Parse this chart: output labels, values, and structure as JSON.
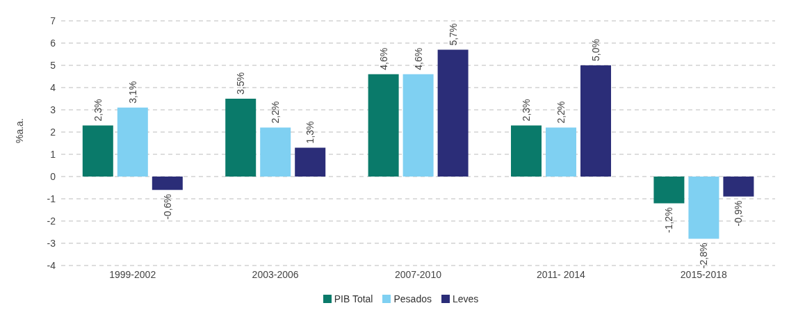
{
  "chart_data": {
    "type": "bar",
    "ylabel": "%a.a.",
    "categories": [
      "1999-2002",
      "2003-2006",
      "2007-2010",
      "2011- 2014",
      "2015-2018"
    ],
    "series": [
      {
        "name": "PIB Total",
        "color": "#0a7a6a",
        "values": [
          2.3,
          3.5,
          4.6,
          2.3,
          -1.2
        ],
        "value_labels": [
          "2,3%",
          "3,5%",
          "4,6%",
          "2,3%",
          "-1,2%"
        ]
      },
      {
        "name": "Pesados",
        "color": "#7fd0f2",
        "values": [
          3.1,
          2.2,
          4.6,
          2.2,
          -2.8
        ],
        "value_labels": [
          "3,1%",
          "2,2%",
          "4,6%",
          "2,2%",
          "-2,8%"
        ]
      },
      {
        "name": "Leves",
        "color": "#2b2d78",
        "values": [
          -0.6,
          1.3,
          5.7,
          5.0,
          -0.9
        ],
        "value_labels": [
          "-0,6%",
          "1,3%",
          "5,7%",
          "5,0%",
          "-0,9%"
        ]
      }
    ],
    "ylim": [
      -4,
      7
    ],
    "yticks": [
      -4,
      -3,
      -2,
      -1,
      0,
      1,
      2,
      3,
      4,
      5,
      6,
      7
    ],
    "grid": "y",
    "legend": "bottom"
  }
}
